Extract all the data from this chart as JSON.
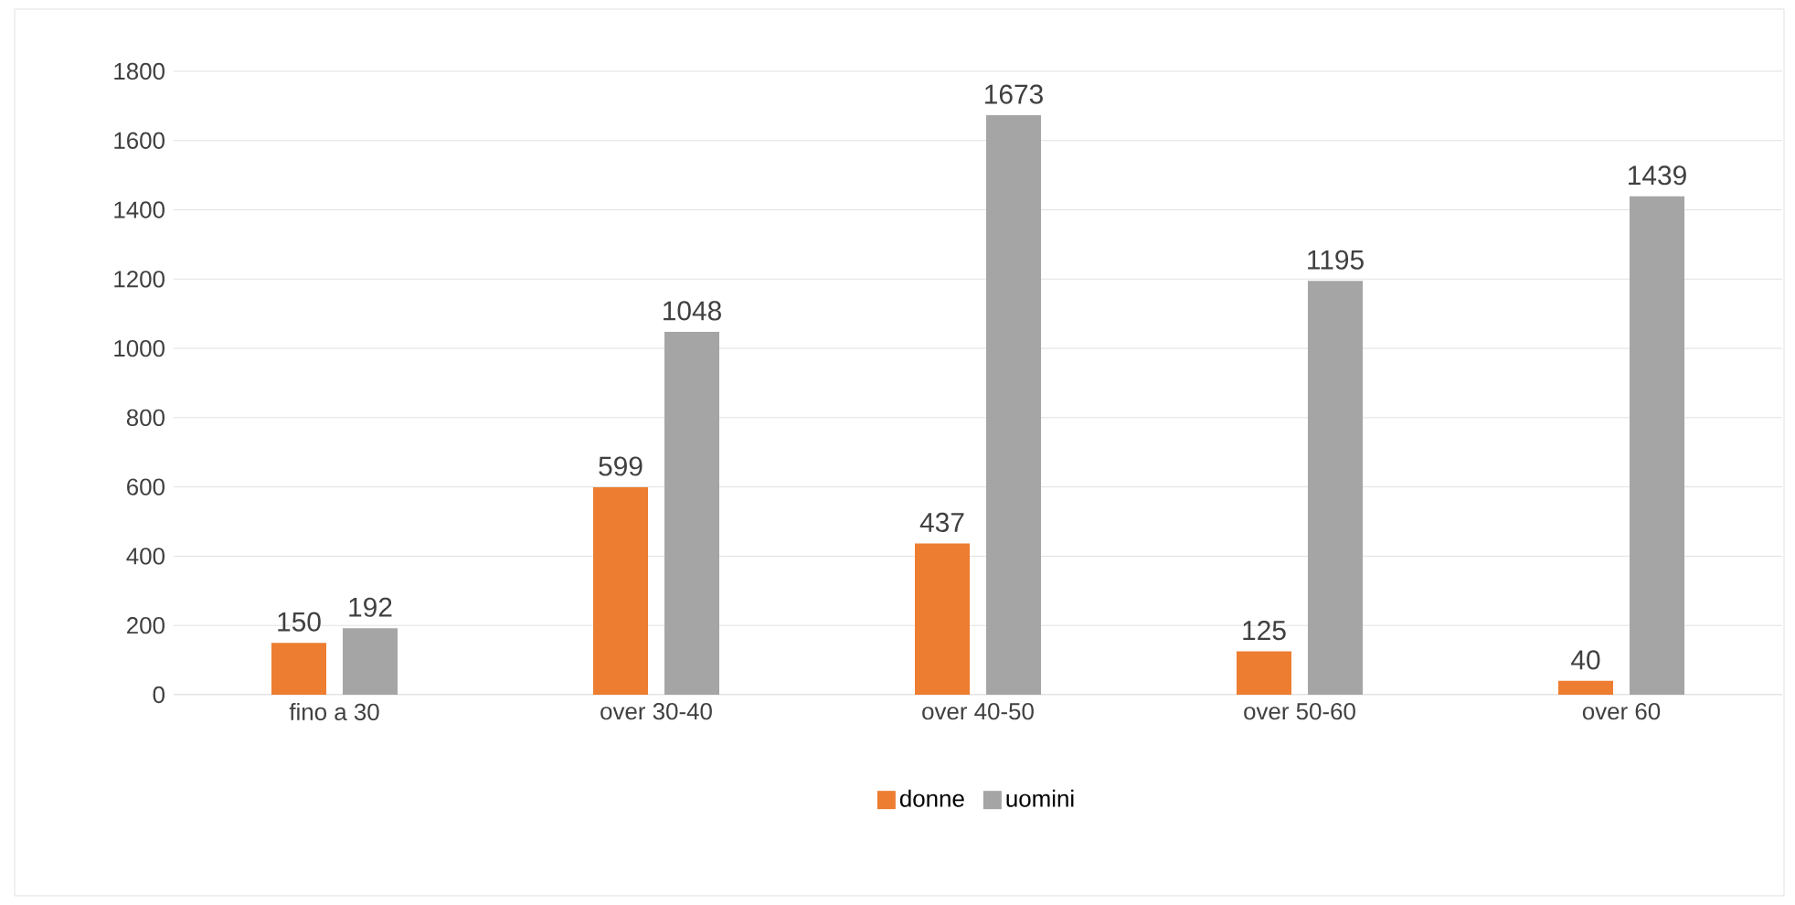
{
  "chart_data": {
    "type": "bar",
    "categories": [
      "fino a 30",
      "over 30-40",
      "over 40-50",
      "over 50-60",
      "over 60"
    ],
    "series": [
      {
        "name": "donne",
        "color": "#ed7d31",
        "values": [
          150,
          599,
          437,
          125,
          40
        ]
      },
      {
        "name": "uomini",
        "color": "#a5a5a5",
        "values": [
          192,
          1048,
          1673,
          1195,
          1439
        ]
      }
    ],
    "ylim": [
      0,
      1800
    ],
    "yticks": [
      0,
      200,
      400,
      600,
      800,
      1000,
      1200,
      1400,
      1600,
      1800
    ],
    "grid": "y",
    "legend": "bottom",
    "data_labels": true
  }
}
